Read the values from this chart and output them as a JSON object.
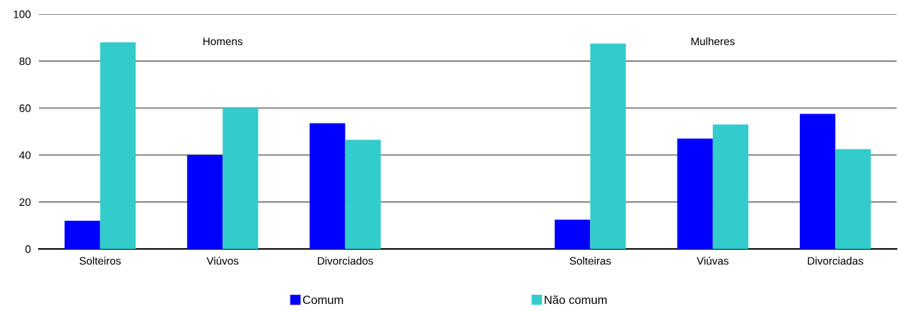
{
  "chart_data": {
    "type": "bar",
    "categories": [
      "Solteiros",
      "Viúvos",
      "Divorciados",
      null,
      "Solteiras",
      "Viúvas",
      "Divorciadas"
    ],
    "series": [
      {
        "name": "Comum",
        "color": "#0000ff",
        "values": [
          12,
          40,
          53.5,
          null,
          12.5,
          47,
          57.5
        ]
      },
      {
        "name": "Não comum",
        "color": "#33cccc",
        "values": [
          88,
          60,
          46.5,
          null,
          87.5,
          53,
          42.5
        ]
      }
    ],
    "ylim": [
      0,
      100
    ],
    "yticks": [
      0,
      20,
      40,
      60,
      80,
      100
    ],
    "grid": "y",
    "legend": "bottom",
    "annotations": [
      "Homens",
      "Mulheres"
    ]
  }
}
